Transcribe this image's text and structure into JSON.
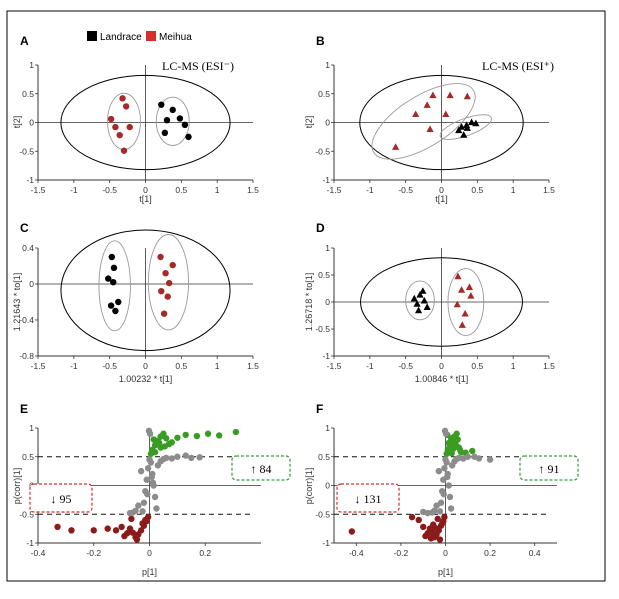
{
  "figure": {
    "legend": {
      "entries": [
        {
          "label": "Landrace",
          "color": "#000000"
        },
        {
          "label": "Meihua",
          "color": "#d32f2f"
        }
      ]
    }
  },
  "chart_data": [
    {
      "panel": "A",
      "type": "scatter",
      "title": "LC-MS (ESI⁻)",
      "xlabel": "t[1]",
      "ylabel": "t[2]",
      "xlim": [
        -1.5,
        1.5
      ],
      "ylim": [
        -1,
        1
      ],
      "xticks": [
        -1.5,
        -1,
        -0.5,
        0,
        0.5,
        1,
        1.5
      ],
      "xtick_labels": [
        "-1.5",
        "-1",
        "-0.5",
        "0",
        "0.5",
        "1",
        "1.5"
      ],
      "yticks": [
        -1,
        -0.5,
        0,
        0.5,
        1
      ],
      "ytick_labels": [
        "-1",
        "-0.5",
        "0",
        "0.5",
        "1"
      ],
      "ellipses": [
        {
          "name": "hotelling-t2",
          "cx": 0,
          "cy": 0,
          "rx": 1.18,
          "ry": 0.82,
          "color": "#000000"
        },
        {
          "name": "meihua-group",
          "cx": -0.3,
          "cy": 0.02,
          "rx": 0.23,
          "ry": 0.49,
          "color": "#999999"
        },
        {
          "name": "landrace-group",
          "cx": 0.38,
          "cy": 0.02,
          "rx": 0.23,
          "ry": 0.42,
          "color": "#999999"
        }
      ],
      "series": [
        {
          "name": "Meihua",
          "marker": "circle",
          "color": "#a52a2a",
          "x": [
            -0.32,
            -0.48,
            -0.42,
            -0.27,
            -0.36,
            -0.22,
            -0.3
          ],
          "y": [
            0.42,
            0.06,
            -0.08,
            0.28,
            -0.22,
            -0.08,
            -0.49
          ]
        },
        {
          "name": "Landrace",
          "marker": "circle",
          "color": "#000000",
          "x": [
            0.22,
            0.38,
            0.3,
            0.48,
            0.27,
            0.6,
            0.55
          ],
          "y": [
            0.31,
            0.22,
            0.04,
            0.07,
            -0.18,
            -0.25,
            -0.04
          ]
        }
      ]
    },
    {
      "panel": "B",
      "type": "scatter",
      "title": "LC-MS (ESI⁺)",
      "xlabel": "t[1]",
      "ylabel": "t[2]",
      "xlim": [
        -1.5,
        1.5
      ],
      "ylim": [
        -1,
        1
      ],
      "xticks": [
        -1.5,
        -1,
        -0.5,
        0,
        0.5,
        1,
        1.5
      ],
      "xtick_labels": [
        "-1.5",
        "-1",
        "-0.5",
        "0",
        "0.5",
        "1",
        "1.5"
      ],
      "yticks": [
        -1,
        -0.5,
        0,
        0.5,
        1
      ],
      "ytick_labels": [
        "-1",
        "-0.5",
        "0",
        "0.5",
        "1"
      ],
      "ellipses": [
        {
          "name": "hotelling-t2",
          "cx": 0,
          "cy": 0,
          "rx": 1.14,
          "ry": 0.82,
          "color": "#000000"
        },
        {
          "name": "meihua-group",
          "cx": -0.25,
          "cy": 0.02,
          "rx": 0.82,
          "ry": 0.44,
          "rot": -32,
          "color": "#999999"
        },
        {
          "name": "landrace-group",
          "cx": 0.34,
          "cy": -0.08,
          "rx": 0.38,
          "ry": 0.15,
          "rot": -20,
          "color": "#999999"
        }
      ],
      "series": [
        {
          "name": "Meihua",
          "marker": "triangle",
          "color": "#a52a2a",
          "x": [
            -0.12,
            0.12,
            0.36,
            -0.2,
            -0.36,
            0.06,
            -0.64,
            -0.16
          ],
          "y": [
            0.47,
            0.47,
            0.45,
            0.3,
            0.14,
            0.14,
            -0.43,
            -0.12
          ]
        },
        {
          "name": "Landrace",
          "marker": "triangle",
          "color": "#000000",
          "x": [
            0.42,
            0.48,
            0.35,
            0.28,
            0.36,
            0.24,
            0.31
          ],
          "y": [
            0.0,
            -0.02,
            -0.05,
            -0.08,
            -0.1,
            -0.14,
            -0.22
          ]
        }
      ]
    },
    {
      "panel": "C",
      "type": "scatter",
      "title": "",
      "xlabel": "1.00232 * t[1]",
      "ylabel": "1.21643 * to[1]",
      "xlim": [
        -1.5,
        1.5
      ],
      "ylim": [
        -0.8,
        0.4
      ],
      "xticks": [
        -1.5,
        -1,
        -0.5,
        0,
        0.5,
        1,
        1.5
      ],
      "xtick_labels": [
        "-1.5",
        "-1",
        "-0.5",
        "0",
        "0.5",
        "1",
        "1.5"
      ],
      "yticks": [
        -0.8,
        -0.4,
        0,
        0.4
      ],
      "ytick_labels": [
        "-0.8",
        "-0.4",
        "0",
        "0.4"
      ],
      "ellipses": [
        {
          "name": "hotelling-t2",
          "cx": 0,
          "cy": -0.07,
          "rx": 1.18,
          "ry": 0.67,
          "color": "#000000"
        },
        {
          "name": "landrace-group",
          "cx": -0.43,
          "cy": -0.02,
          "rx": 0.22,
          "ry": 0.5,
          "color": "#999999"
        },
        {
          "name": "meihua-group",
          "cx": 0.32,
          "cy": 0.02,
          "rx": 0.28,
          "ry": 0.53,
          "color": "#999999"
        }
      ],
      "series": [
        {
          "name": "Landrace",
          "marker": "circle",
          "color": "#000000",
          "x": [
            -0.47,
            -0.44,
            -0.52,
            -0.45,
            -0.38,
            -0.48,
            -0.42
          ],
          "y": [
            0.3,
            0.18,
            0.06,
            0.02,
            -0.2,
            -0.24,
            -0.3
          ]
        },
        {
          "name": "Meihua",
          "marker": "circle",
          "color": "#a52a2a",
          "x": [
            0.21,
            0.38,
            0.28,
            0.33,
            0.22,
            0.31,
            0.26
          ],
          "y": [
            0.3,
            0.21,
            0.12,
            0.01,
            -0.08,
            -0.14,
            -0.33
          ]
        }
      ]
    },
    {
      "panel": "D",
      "type": "scatter",
      "title": "",
      "xlabel": "1.00846 * t[1]",
      "ylabel": "1.26718 * to[1]",
      "xlim": [
        -1.5,
        1.5
      ],
      "ylim": [
        -1,
        1
      ],
      "xticks": [
        -1.5,
        -1,
        -0.5,
        0,
        0.5,
        1,
        1.5
      ],
      "xtick_labels": [
        "-1.5",
        "-1",
        "-0.5",
        "0",
        "0.5",
        "1",
        "1.5"
      ],
      "yticks": [
        -1,
        -0.5,
        0,
        0.5,
        1
      ],
      "ytick_labels": [
        "-1",
        "-0.5",
        "0",
        "0.5",
        "1"
      ],
      "ellipses": [
        {
          "name": "hotelling-t2",
          "cx": 0,
          "cy": 0,
          "rx": 1.13,
          "ry": 0.82,
          "color": "#000000"
        },
        {
          "name": "landrace-group",
          "cx": -0.3,
          "cy": 0.03,
          "rx": 0.2,
          "ry": 0.36,
          "color": "#999999"
        },
        {
          "name": "meihua-group",
          "cx": 0.34,
          "cy": 0.0,
          "rx": 0.25,
          "ry": 0.62,
          "color": "#999999"
        }
      ],
      "series": [
        {
          "name": "Landrace",
          "marker": "triangle",
          "color": "#000000",
          "x": [
            -0.26,
            -0.3,
            -0.38,
            -0.24,
            -0.34,
            -0.2,
            -0.32
          ],
          "y": [
            0.2,
            0.13,
            0.06,
            0.02,
            -0.04,
            -0.1,
            -0.16
          ]
        },
        {
          "name": "Meihua",
          "marker": "triangle",
          "color": "#a52a2a",
          "x": [
            0.23,
            0.39,
            0.28,
            0.41,
            0.22,
            0.33,
            0.29
          ],
          "y": [
            0.47,
            0.27,
            0.22,
            0.11,
            -0.05,
            -0.22,
            -0.43
          ]
        }
      ]
    },
    {
      "panel": "E",
      "type": "scatter",
      "title": "",
      "xlabel": "p[1]",
      "ylabel": "p(corr)[1]",
      "xlim": [
        -0.4,
        0.4
      ],
      "ylim": [
        -1,
        1
      ],
      "xticks": [
        -0.4,
        -0.2,
        0,
        0.2
      ],
      "xtick_labels": [
        "-0.4",
        "-0.2",
        "0",
        "0.2"
      ],
      "yticks": [
        -1,
        -0.5,
        0,
        0.5,
        1
      ],
      "ytick_labels": [
        "-1",
        "-0.5",
        "0",
        "0.5",
        "1"
      ],
      "thresholds": [
        0.5,
        -0.5
      ],
      "annotations": [
        {
          "text": "↓ 95",
          "color": "#d32f2f",
          "position": "left"
        },
        {
          "text": "↑ 84",
          "color": "#2e9d3a",
          "position": "right"
        }
      ],
      "series": [
        {
          "name": "upregulated",
          "marker": "circle",
          "color": "#3a9d23",
          "x": [
            0.005,
            0.01,
            0.02,
            0.03,
            0.04,
            0.05,
            0.06,
            0.08,
            0.1,
            0.13,
            0.17,
            0.21,
            0.25,
            0.31,
            0.02,
            0.04,
            0.07,
            0.015,
            0.035,
            0.055
          ],
          "y": [
            0.55,
            0.62,
            0.7,
            0.78,
            0.85,
            0.9,
            0.82,
            0.75,
            0.83,
            0.88,
            0.86,
            0.9,
            0.87,
            0.93,
            0.58,
            0.66,
            0.72,
            0.8,
            0.74,
            0.68
          ]
        },
        {
          "name": "downregulated",
          "marker": "circle",
          "color": "#8b1a1a",
          "x": [
            -0.005,
            -0.01,
            -0.02,
            -0.03,
            -0.04,
            -0.05,
            -0.06,
            -0.07,
            -0.08,
            -0.09,
            -0.1,
            -0.12,
            -0.15,
            -0.2,
            -0.28,
            -0.33,
            -0.015,
            -0.025,
            -0.045,
            -0.065
          ],
          "y": [
            -0.55,
            -0.62,
            -0.7,
            -0.78,
            -0.85,
            -0.9,
            -0.82,
            -0.75,
            -0.83,
            -0.88,
            -0.72,
            -0.78,
            -0.75,
            -0.78,
            -0.78,
            -0.72,
            -0.6,
            -0.66,
            -0.94,
            -0.58
          ]
        },
        {
          "name": "not-significant",
          "marker": "circle",
          "color": "#8c8c8c",
          "x": [
            0,
            0.005,
            -0.005,
            0.01,
            -0.01,
            0.015,
            -0.015,
            0.02,
            -0.02,
            0.025,
            -0.025,
            0.03,
            -0.03,
            0.04,
            -0.04,
            0.05,
            -0.05,
            0.06,
            0.08,
            0.1,
            0.13,
            0.15,
            0.18,
            -0.06,
            -0.07,
            0.002,
            -0.002,
            0.008,
            -0.008,
            0.012
          ],
          "y": [
            0.45,
            0.4,
            0.3,
            0.2,
            0.1,
            0.0,
            -0.1,
            -0.2,
            -0.3,
            -0.4,
            -0.45,
            0.35,
            0.25,
            0.42,
            -0.35,
            0.46,
            -0.44,
            0.48,
            0.47,
            0.5,
            0.52,
            0.48,
            0.49,
            -0.47,
            -0.48,
            0.9,
            0.95,
            0.15,
            -0.15,
            0.05
          ]
        }
      ]
    },
    {
      "panel": "F",
      "type": "scatter",
      "title": "",
      "xlabel": "p[1]",
      "ylabel": "p(corr)[1]",
      "xlim": [
        -0.5,
        0.5
      ],
      "ylim": [
        -1,
        1
      ],
      "xticks": [
        -0.4,
        -0.2,
        0,
        0.2,
        0.4
      ],
      "xtick_labels": [
        "-0.4",
        "-0.2",
        "0",
        "0.2",
        "0.4"
      ],
      "yticks": [
        -1,
        -0.5,
        0,
        0.5,
        1
      ],
      "ytick_labels": [
        "-1",
        "-0.5",
        "0",
        "0.5",
        "1"
      ],
      "thresholds": [
        0.5,
        -0.5
      ],
      "annotations": [
        {
          "text": "↓ 131",
          "color": "#d32f2f",
          "position": "left"
        },
        {
          "text": "↑ 91",
          "color": "#2e9d3a",
          "position": "right"
        }
      ],
      "series": [
        {
          "name": "upregulated",
          "marker": "circle",
          "color": "#3a9d23",
          "x": [
            0.005,
            0.01,
            0.02,
            0.03,
            0.04,
            0.05,
            0.06,
            0.07,
            0.09,
            0.12,
            0.015,
            0.025,
            0.035,
            0.045,
            0.055,
            0.065,
            0.008,
            0.018,
            0.028,
            0.038
          ],
          "y": [
            0.55,
            0.62,
            0.7,
            0.78,
            0.85,
            0.9,
            0.66,
            0.58,
            0.57,
            0.6,
            0.74,
            0.82,
            0.64,
            0.72,
            0.8,
            0.62,
            0.88,
            0.68,
            0.56,
            0.76
          ]
        },
        {
          "name": "downregulated",
          "marker": "circle",
          "color": "#8b1a1a",
          "x": [
            -0.005,
            -0.01,
            -0.02,
            -0.03,
            -0.04,
            -0.05,
            -0.06,
            -0.07,
            -0.08,
            -0.09,
            -0.1,
            -0.12,
            -0.15,
            -0.42,
            -0.015,
            -0.025,
            -0.035,
            -0.045,
            -0.055,
            -0.065
          ],
          "y": [
            -0.55,
            -0.62,
            -0.7,
            -0.78,
            -0.85,
            -0.9,
            -0.82,
            -0.75,
            -0.83,
            -0.88,
            -0.72,
            -0.6,
            -0.55,
            -0.8,
            -0.66,
            -0.94,
            -0.58,
            -0.74,
            -0.68,
            -0.92
          ]
        },
        {
          "name": "not-significant",
          "marker": "circle",
          "color": "#8c8c8c",
          "x": [
            0,
            0.005,
            -0.005,
            0.01,
            -0.01,
            0.015,
            -0.015,
            0.02,
            -0.02,
            0.025,
            -0.025,
            0.03,
            -0.03,
            0.04,
            -0.04,
            0.05,
            -0.05,
            0.06,
            0.08,
            0.1,
            0.13,
            0.15,
            0.2,
            -0.06,
            -0.08,
            -0.1,
            0.002,
            -0.002,
            0.008,
            -0.008
          ],
          "y": [
            0.45,
            0.4,
            0.3,
            0.2,
            0.1,
            0.0,
            -0.1,
            -0.2,
            -0.3,
            -0.4,
            -0.45,
            0.35,
            0.25,
            0.42,
            -0.35,
            0.46,
            -0.44,
            0.48,
            0.47,
            0.5,
            0.5,
            0.47,
            0.45,
            -0.47,
            -0.48,
            -0.46,
            0.9,
            0.95,
            0.15,
            -0.15
          ]
        }
      ]
    }
  ]
}
